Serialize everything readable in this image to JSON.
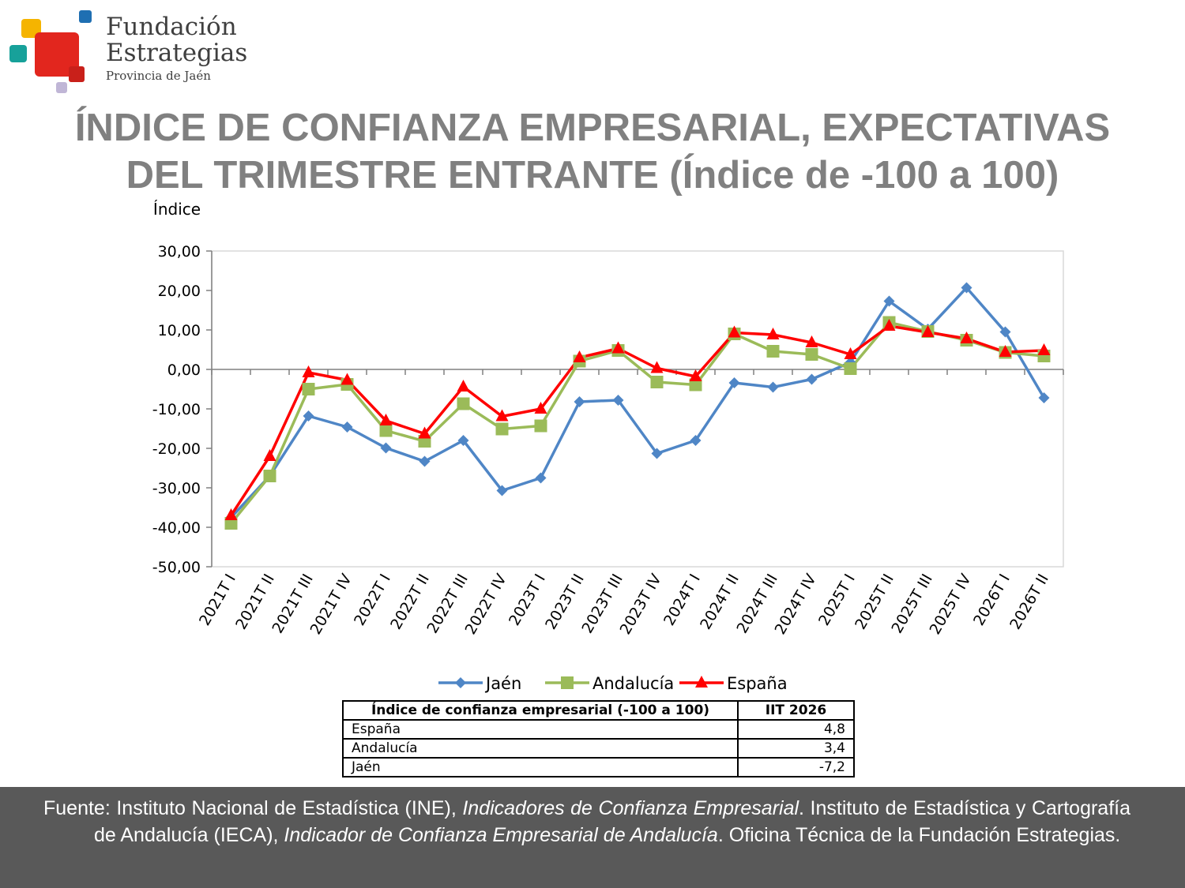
{
  "logo": {
    "line1": "Fundación",
    "line2": "Estrategias",
    "line3": "Provincia de Jaén",
    "colors": [
      "#f5b400",
      "#1f6fb2",
      "#17a19a",
      "#e2261e",
      "#c0b6d6"
    ]
  },
  "title": {
    "line1": "ÍNDICE DE CONFIANZA EMPRESARIAL, EXPECTATIVAS",
    "line2": "DEL TRIMESTRE ENTRANTE (Índice de -100 a 100)"
  },
  "chart_data": {
    "type": "line",
    "ylabel": "Índice",
    "ylim": [
      -50,
      30
    ],
    "yticks": [
      "30,00",
      "20,00",
      "10,00",
      "0,00",
      "-10,00",
      "-20,00",
      "-30,00",
      "-40,00",
      "-50,00"
    ],
    "categories": [
      "2021T I",
      "2021T II",
      "2021T III",
      "2021T IV",
      "2022T I",
      "2022T II",
      "2022T III",
      "2022T IV",
      "2023T I",
      "2023T II",
      "2023T III",
      "2023T IV",
      "2024T I",
      "2024T II",
      "2024T III",
      "2024T IV",
      "2025T I",
      "2025T II",
      "2025T III",
      "2025T IV",
      "2026T I",
      "2026T II"
    ],
    "legend_position": "bottom",
    "grid": false,
    "series": [
      {
        "name": "Jaén",
        "color": "#4f86c6",
        "marker": "diamond",
        "values": [
          -37.5,
          -27.0,
          -11.8,
          -14.6,
          -19.9,
          -23.3,
          -18.0,
          -30.7,
          -27.5,
          -8.2,
          -7.8,
          -21.3,
          -18.0,
          -3.4,
          -4.5,
          -2.5,
          1.8,
          17.3,
          10.2,
          20.7,
          9.5,
          -7.2
        ]
      },
      {
        "name": "Andalucía",
        "color": "#9bbb59",
        "marker": "square",
        "values": [
          -39.0,
          -27.0,
          -5.0,
          -3.8,
          -15.5,
          -18.2,
          -8.7,
          -15.1,
          -14.3,
          2.1,
          4.8,
          -3.2,
          -3.9,
          9.0,
          4.6,
          3.8,
          0.2,
          11.9,
          9.6,
          7.4,
          4.3,
          3.4
        ]
      },
      {
        "name": "España",
        "color": "#ff0000",
        "marker": "triangle",
        "values": [
          -37.0,
          -22.0,
          -0.8,
          -2.7,
          -13.0,
          -16.3,
          -4.4,
          -11.9,
          -10.0,
          3.0,
          5.3,
          0.3,
          -1.8,
          9.3,
          8.8,
          6.8,
          3.8,
          11.0,
          9.4,
          7.8,
          4.4,
          4.8
        ]
      }
    ]
  },
  "table": {
    "header": {
      "label": "Índice de confianza empresarial (-100 a 100)",
      "value": "IIT 2026"
    },
    "rows": [
      {
        "label": "España",
        "value": "4,8"
      },
      {
        "label": "Andalucía",
        "value": "3,4"
      },
      {
        "label": "Jaén",
        "value": "-7,2"
      }
    ]
  },
  "footer": {
    "t1": "Fuente: Instituto Nacional de Estadística (INE), ",
    "i1": "Indicadores de Confianza Empresarial",
    "t2": ". Instituto de Estadística y Cartografía de Andalucía (IECA), ",
    "i2": "Indicador de Confianza Empresarial de Andalucía",
    "t3": ". Oficina Técnica de la Fundación Estrategias."
  }
}
